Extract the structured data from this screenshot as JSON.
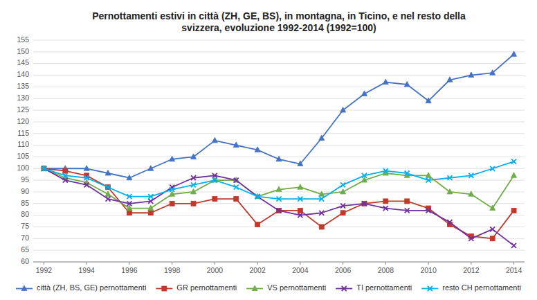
{
  "chart_data": {
    "type": "line",
    "title": "Pernottamenti estivi in città (ZH, GE, BS), in  montagna, in Ticino, e nel resto della\nsvizzera, evoluzione 1992-2014 (1992=100)",
    "x": [
      1992,
      1993,
      1994,
      1995,
      1996,
      1997,
      1998,
      1999,
      2000,
      2001,
      2002,
      2003,
      2004,
      2005,
      2006,
      2007,
      2008,
      2009,
      2010,
      2011,
      2012,
      2013,
      2014
    ],
    "series": [
      {
        "name": "città (ZH, BS, GE) pernottamenti",
        "color": "#4472C4",
        "marker": "triangle",
        "values": [
          100,
          100,
          100,
          98,
          96,
          100,
          104,
          105,
          112,
          110,
          108,
          104,
          102,
          113,
          125,
          132,
          137,
          136,
          129,
          138,
          140,
          141,
          149
        ]
      },
      {
        "name": "GR pernottamenti",
        "color": "#C0392B",
        "marker": "square",
        "values": [
          100,
          99,
          97,
          92,
          81,
          81,
          85,
          85,
          87,
          87,
          76,
          82,
          82,
          75,
          81,
          85,
          86,
          86,
          83,
          76,
          71,
          70,
          82
        ]
      },
      {
        "name": "VS pernottamenti",
        "color": "#70AD47",
        "marker": "triangle",
        "values": [
          100,
          96,
          94,
          89,
          83,
          83,
          89,
          90,
          95,
          95,
          88,
          91,
          92,
          89,
          90,
          95,
          98,
          97,
          97,
          90,
          89,
          83,
          97
        ]
      },
      {
        "name": "TI pernottamenti",
        "color": "#7030A0",
        "marker": "x",
        "values": [
          100,
          95,
          93,
          87,
          85,
          86,
          92,
          96,
          97,
          95,
          88,
          82,
          80,
          81,
          84,
          85,
          83,
          82,
          82,
          77,
          70,
          74,
          67
        ]
      },
      {
        "name": "resto CH pernottamenti",
        "color": "#00B0F0",
        "marker": "x",
        "values": [
          100,
          97,
          96,
          92,
          88,
          88,
          91,
          93,
          95,
          92,
          88,
          87,
          87,
          87,
          93,
          97,
          99,
          98,
          95,
          96,
          97,
          100,
          103
        ]
      }
    ],
    "xlim": [
      1991.5,
      2014.5
    ],
    "xticks": [
      1992,
      1994,
      1996,
      1998,
      2000,
      2002,
      2004,
      2006,
      2008,
      2010,
      2012,
      2014
    ],
    "ylim": [
      60,
      155
    ],
    "yticks": [
      60,
      65,
      70,
      75,
      80,
      85,
      90,
      95,
      100,
      105,
      110,
      115,
      120,
      125,
      130,
      135,
      140,
      145,
      150,
      155
    ],
    "grid": true,
    "legend": "bottom"
  }
}
